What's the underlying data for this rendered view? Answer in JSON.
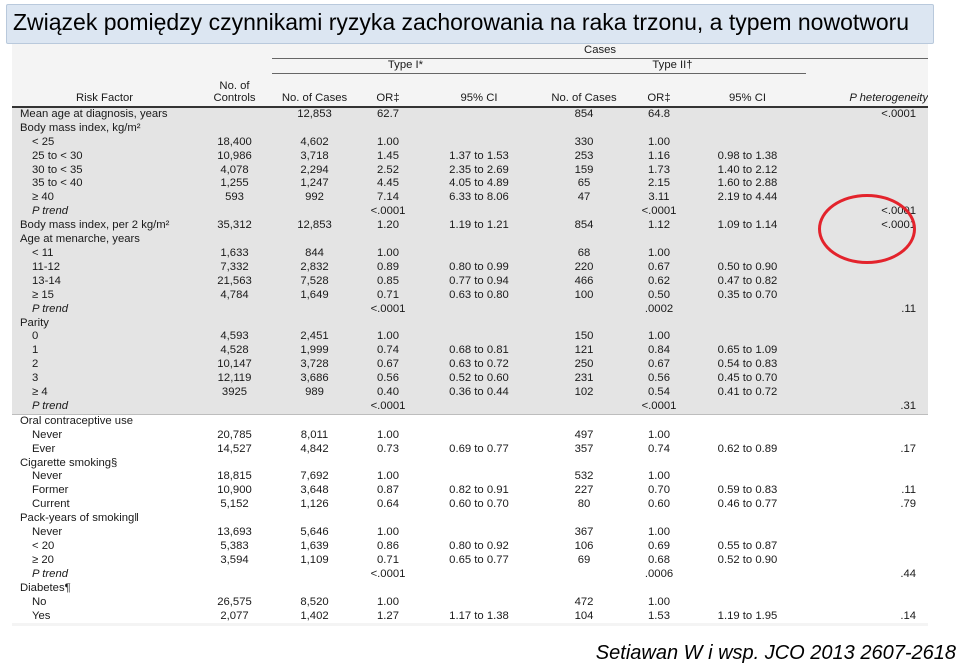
{
  "title": "Związek pomiędzy czynnikami ryzyka  zachorowania na raka trzonu, a typem nowotworu",
  "citation": "Setiawan W i wsp. JCO  2013  2607-2618",
  "accent": {
    "title_bg": "#dce6f2",
    "circle": "#e3232c"
  },
  "headers": {
    "cases": "Cases",
    "type1": "Type I*",
    "type2": "Type II†",
    "risk_factor": "Risk Factor",
    "controls": "No. of Controls",
    "no_cases": "No. of Cases",
    "or": "OR‡",
    "ci": "95% CI",
    "no_cases2": "No. of Cases",
    "or2": "OR‡",
    "ci2": "95% CI",
    "phet": "P heterogeneity"
  },
  "rows": [
    {
      "f": "Mean age at diagnosis, years",
      "ctl": "",
      "n1": "12,853",
      "or1": "62.7",
      "ci1": "",
      "n2": "854",
      "or2": "64.8",
      "ci2": "",
      "ph": "<.0001",
      "k": "h"
    },
    {
      "f": "Body mass index, kg/m²",
      "ctl": "",
      "n1": "",
      "or1": "",
      "ci1": "",
      "n2": "",
      "or2": "",
      "ci2": "",
      "ph": "",
      "k": "h"
    },
    {
      "f": "< 25",
      "ctl": "18,400",
      "n1": "4,602",
      "or1": "1.00",
      "ci1": "",
      "n2": "330",
      "or2": "1.00",
      "ci2": "",
      "ph": "",
      "k": "s"
    },
    {
      "f": "25 to < 30",
      "ctl": "10,986",
      "n1": "3,718",
      "or1": "1.45",
      "ci1": "1.37 to 1.53",
      "n2": "253",
      "or2": "1.16",
      "ci2": "0.98 to 1.38",
      "ph": "",
      "k": "s"
    },
    {
      "f": "30 to < 35",
      "ctl": "4,078",
      "n1": "2,294",
      "or1": "2.52",
      "ci1": "2.35 to 2.69",
      "n2": "159",
      "or2": "1.73",
      "ci2": "1.40 to 2.12",
      "ph": "",
      "k": "s"
    },
    {
      "f": "35 to < 40",
      "ctl": "1,255",
      "n1": "1,247",
      "or1": "4.45",
      "ci1": "4.05 to 4.89",
      "n2": "65",
      "or2": "2.15",
      "ci2": "1.60 to 2.88",
      "ph": "",
      "k": "s"
    },
    {
      "f": "≥ 40",
      "ctl": "593",
      "n1": "992",
      "or1": "7.14",
      "ci1": "6.33 to 8.06",
      "n2": "47",
      "or2": "3.11",
      "ci2": "2.19 to 4.44",
      "ph": "",
      "k": "s"
    },
    {
      "f": "P trend",
      "ctl": "",
      "n1": "",
      "or1": "<.0001",
      "ci1": "",
      "n2": "",
      "or2": "<.0001",
      "ci2": "",
      "ph": "<.0001",
      "k": "p"
    },
    {
      "f": "Body mass index, per 2 kg/m²",
      "ctl": "35,312",
      "n1": "12,853",
      "or1": "1.20",
      "ci1": "1.19 to 1.21",
      "n2": "854",
      "or2": "1.12",
      "ci2": "1.09 to 1.14",
      "ph": "<.0001",
      "k": "h"
    },
    {
      "f": "Age at menarche, years",
      "ctl": "",
      "n1": "",
      "or1": "",
      "ci1": "",
      "n2": "",
      "or2": "",
      "ci2": "",
      "ph": "",
      "k": "h"
    },
    {
      "f": "< 11",
      "ctl": "1,633",
      "n1": "844",
      "or1": "1.00",
      "ci1": "",
      "n2": "68",
      "or2": "1.00",
      "ci2": "",
      "ph": "",
      "k": "s"
    },
    {
      "f": "11-12",
      "ctl": "7,332",
      "n1": "2,832",
      "or1": "0.89",
      "ci1": "0.80 to 0.99",
      "n2": "220",
      "or2": "0.67",
      "ci2": "0.50 to 0.90",
      "ph": "",
      "k": "s"
    },
    {
      "f": "13-14",
      "ctl": "21,563",
      "n1": "7,528",
      "or1": "0.85",
      "ci1": "0.77 to 0.94",
      "n2": "466",
      "or2": "0.62",
      "ci2": "0.47 to 0.82",
      "ph": "",
      "k": "s"
    },
    {
      "f": "≥ 15",
      "ctl": "4,784",
      "n1": "1,649",
      "or1": "0.71",
      "ci1": "0.63 to 0.80",
      "n2": "100",
      "or2": "0.50",
      "ci2": "0.35 to 0.70",
      "ph": "",
      "k": "s"
    },
    {
      "f": "P trend",
      "ctl": "",
      "n1": "",
      "or1": "<.0001",
      "ci1": "",
      "n2": "",
      "or2": ".0002",
      "ci2": "",
      "ph": ".11",
      "k": "p"
    },
    {
      "f": "Parity",
      "ctl": "",
      "n1": "",
      "or1": "",
      "ci1": "",
      "n2": "",
      "or2": "",
      "ci2": "",
      "ph": "",
      "k": "h"
    },
    {
      "f": "0",
      "ctl": "4,593",
      "n1": "2,451",
      "or1": "1.00",
      "ci1": "",
      "n2": "150",
      "or2": "1.00",
      "ci2": "",
      "ph": "",
      "k": "s"
    },
    {
      "f": "1",
      "ctl": "4,528",
      "n1": "1,999",
      "or1": "0.74",
      "ci1": "0.68 to 0.81",
      "n2": "121",
      "or2": "0.84",
      "ci2": "0.65 to 1.09",
      "ph": "",
      "k": "s"
    },
    {
      "f": "2",
      "ctl": "10,147",
      "n1": "3,728",
      "or1": "0.67",
      "ci1": "0.63 to 0.72",
      "n2": "250",
      "or2": "0.67",
      "ci2": "0.54 to 0.83",
      "ph": "",
      "k": "s"
    },
    {
      "f": "3",
      "ctl": "12,119",
      "n1": "3,686",
      "or1": "0.56",
      "ci1": "0.52 to 0.60",
      "n2": "231",
      "or2": "0.56",
      "ci2": "0.45 to 0.70",
      "ph": "",
      "k": "s"
    },
    {
      "f": "≥ 4",
      "ctl": "3925",
      "n1": "989",
      "or1": "0.40",
      "ci1": "0.36 to 0.44",
      "n2": "102",
      "or2": "0.54",
      "ci2": "0.41 to 0.72",
      "ph": "",
      "k": "s"
    },
    {
      "f": "P trend",
      "ctl": "",
      "n1": "",
      "or1": "<.0001",
      "ci1": "",
      "n2": "",
      "or2": "<.0001",
      "ci2": "",
      "ph": ".31",
      "k": "p"
    },
    {
      "f": "Oral contraceptive use",
      "ctl": "",
      "n1": "",
      "or1": "",
      "ci1": "",
      "n2": "",
      "or2": "",
      "ci2": "",
      "ph": "",
      "k": "h",
      "sec": 1
    },
    {
      "f": "Never",
      "ctl": "20,785",
      "n1": "8,011",
      "or1": "1.00",
      "ci1": "",
      "n2": "497",
      "or2": "1.00",
      "ci2": "",
      "ph": "",
      "k": "s"
    },
    {
      "f": "Ever",
      "ctl": "14,527",
      "n1": "4,842",
      "or1": "0.73",
      "ci1": "0.69 to 0.77",
      "n2": "357",
      "or2": "0.74",
      "ci2": "0.62 to 0.89",
      "ph": ".17",
      "k": "s"
    },
    {
      "f": "Cigarette smoking§",
      "ctl": "",
      "n1": "",
      "or1": "",
      "ci1": "",
      "n2": "",
      "or2": "",
      "ci2": "",
      "ph": "",
      "k": "h"
    },
    {
      "f": "Never",
      "ctl": "18,815",
      "n1": "7,692",
      "or1": "1.00",
      "ci1": "",
      "n2": "532",
      "or2": "1.00",
      "ci2": "",
      "ph": "",
      "k": "s"
    },
    {
      "f": "Former",
      "ctl": "10,900",
      "n1": "3,648",
      "or1": "0.87",
      "ci1": "0.82 to 0.91",
      "n2": "227",
      "or2": "0.70",
      "ci2": "0.59 to 0.83",
      "ph": ".11",
      "k": "s"
    },
    {
      "f": "Current",
      "ctl": "5,152",
      "n1": "1,126",
      "or1": "0.64",
      "ci1": "0.60 to 0.70",
      "n2": "80",
      "or2": "0.60",
      "ci2": "0.46 to 0.77",
      "ph": ".79",
      "k": "s"
    },
    {
      "f": "Pack-years of smoking‖",
      "ctl": "",
      "n1": "",
      "or1": "",
      "ci1": "",
      "n2": "",
      "or2": "",
      "ci2": "",
      "ph": "",
      "k": "h"
    },
    {
      "f": "Never",
      "ctl": "13,693",
      "n1": "5,646",
      "or1": "1.00",
      "ci1": "",
      "n2": "367",
      "or2": "1.00",
      "ci2": "",
      "ph": "",
      "k": "s"
    },
    {
      "f": "< 20",
      "ctl": "5,383",
      "n1": "1,639",
      "or1": "0.86",
      "ci1": "0.80 to 0.92",
      "n2": "106",
      "or2": "0.69",
      "ci2": "0.55 to 0.87",
      "ph": "",
      "k": "s"
    },
    {
      "f": "≥ 20",
      "ctl": "3,594",
      "n1": "1,109",
      "or1": "0.71",
      "ci1": "0.65 to 0.77",
      "n2": "69",
      "or2": "0.68",
      "ci2": "0.52 to 0.90",
      "ph": "",
      "k": "s"
    },
    {
      "f": "P trend",
      "ctl": "",
      "n1": "",
      "or1": "<.0001",
      "ci1": "",
      "n2": "",
      "or2": ".0006",
      "ci2": "",
      "ph": ".44",
      "k": "p"
    },
    {
      "f": "Diabetes¶",
      "ctl": "",
      "n1": "",
      "or1": "",
      "ci1": "",
      "n2": "",
      "or2": "",
      "ci2": "",
      "ph": "",
      "k": "h"
    },
    {
      "f": "No",
      "ctl": "26,575",
      "n1": "8,520",
      "or1": "1.00",
      "ci1": "",
      "n2": "472",
      "or2": "1.00",
      "ci2": "",
      "ph": "",
      "k": "s"
    },
    {
      "f": "Yes",
      "ctl": "2,077",
      "n1": "1,402",
      "or1": "1.27",
      "ci1": "1.17 to 1.38",
      "n2": "104",
      "or2": "1.53",
      "ci2": "1.19 to 1.95",
      "ph": ".14",
      "k": "s"
    }
  ]
}
